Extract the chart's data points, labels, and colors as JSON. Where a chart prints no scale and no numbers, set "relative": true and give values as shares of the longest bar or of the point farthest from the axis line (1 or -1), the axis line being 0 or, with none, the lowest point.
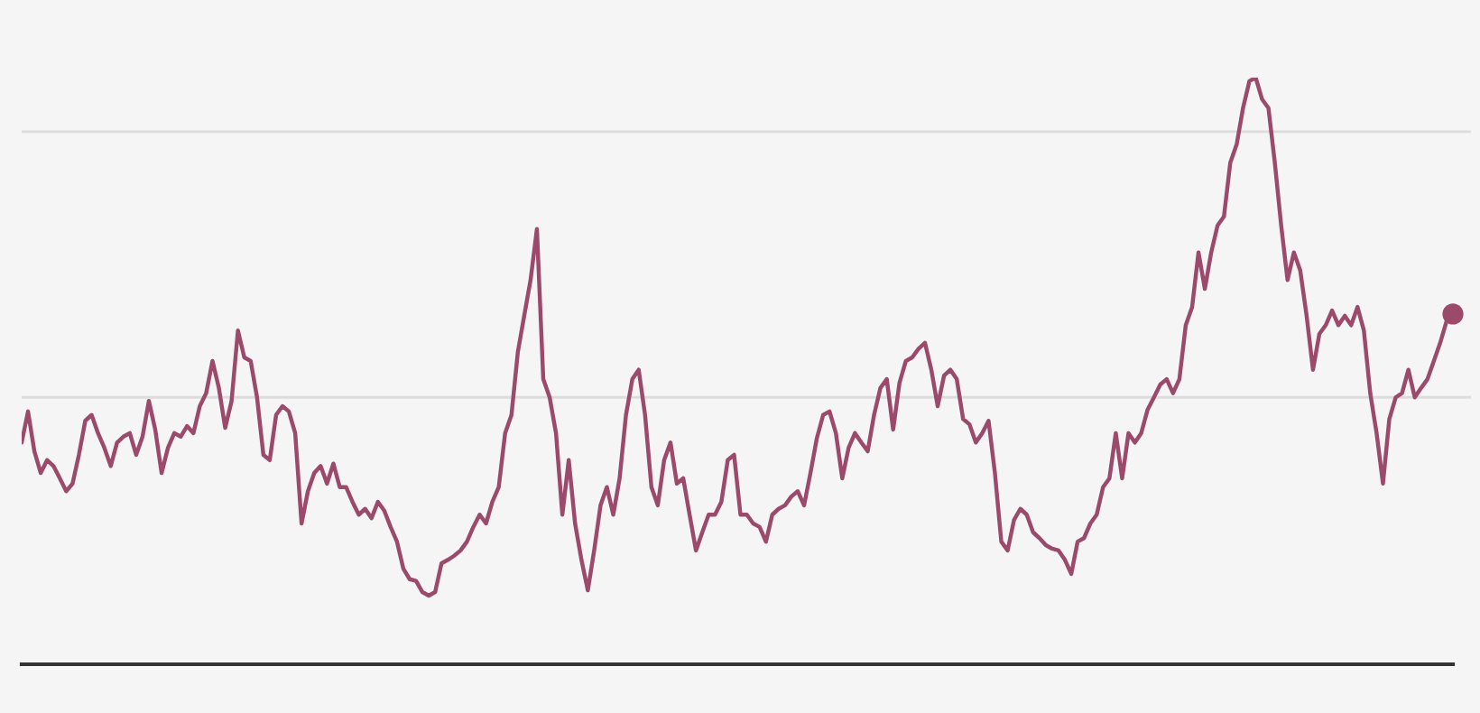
{
  "chart_data": {
    "type": "line",
    "relative": true,
    "marker": "none",
    "line_style": "solid",
    "legend": false,
    "categories": [
      null,
      null,
      null,
      null,
      null,
      null,
      null,
      null,
      null,
      null,
      null,
      null,
      null,
      null,
      null,
      null,
      null,
      null,
      null,
      null,
      null,
      null,
      null,
      null,
      null,
      null,
      null,
      null,
      null,
      null,
      null,
      null,
      null,
      null,
      null,
      null,
      null,
      null,
      null,
      null,
      null,
      null,
      null,
      null,
      null,
      null,
      null,
      null,
      null,
      null,
      null,
      null,
      null,
      null,
      null,
      null,
      null,
      null,
      null,
      null,
      null,
      null,
      null,
      null,
      null,
      null,
      null,
      null,
      null,
      null,
      null,
      null,
      null,
      null,
      null,
      null,
      null,
      null,
      null,
      null,
      null,
      null,
      null,
      null,
      null,
      null,
      null,
      null,
      null,
      null,
      null,
      null,
      null,
      null,
      null,
      null,
      null,
      null,
      null,
      null,
      null,
      null,
      null,
      null,
      null,
      null,
      null,
      null,
      null,
      null,
      null,
      null,
      null,
      null,
      null,
      null,
      null,
      null,
      null,
      null,
      null,
      null,
      null,
      null,
      null,
      null,
      null,
      null,
      null,
      null,
      null,
      null,
      null,
      null,
      null,
      null,
      null,
      null,
      null,
      null,
      null,
      null,
      null,
      null,
      null,
      null,
      null,
      null,
      null,
      null,
      null,
      null,
      null,
      null,
      null,
      null,
      null,
      null,
      null,
      null,
      null,
      null,
      null,
      null,
      null,
      null,
      null,
      null,
      null,
      null,
      null,
      null,
      null,
      null,
      null,
      null,
      null,
      null,
      null,
      null,
      null,
      null,
      null,
      null,
      null,
      null,
      null,
      null,
      null,
      null,
      null,
      null,
      null,
      null,
      null,
      null,
      null,
      null,
      null,
      null,
      null,
      null,
      null,
      null,
      null,
      null,
      null,
      null,
      null,
      null,
      null,
      null,
      null,
      null,
      null,
      null,
      null,
      null,
      null,
      null,
      null,
      null,
      null,
      null,
      null,
      null
    ],
    "ref_lines": [
      {
        "axis": "y",
        "value": 0.908,
        "color": "#dcdcdc"
      },
      {
        "axis": "y",
        "value": 0.455,
        "color": "#dcdcdc"
      }
    ],
    "series": [
      {
        "color": "#9b4a6b",
        "values": [
          0.378,
          0.431,
          0.363,
          0.326,
          0.348,
          0.338,
          0.317,
          0.295,
          0.308,
          0.357,
          0.415,
          0.425,
          0.394,
          0.369,
          0.338,
          0.378,
          0.388,
          0.394,
          0.357,
          0.388,
          0.449,
          0.4,
          0.326,
          0.369,
          0.394,
          0.388,
          0.406,
          0.394,
          0.44,
          0.462,
          0.517,
          0.471,
          0.403,
          0.449,
          0.569,
          0.523,
          0.517,
          0.455,
          0.357,
          0.348,
          0.425,
          0.44,
          0.431,
          0.394,
          0.24,
          0.295,
          0.326,
          0.338,
          0.308,
          0.342,
          0.302,
          0.302,
          0.277,
          0.255,
          0.265,
          0.249,
          0.277,
          0.262,
          0.234,
          0.209,
          0.163,
          0.145,
          0.142,
          0.123,
          0.117,
          0.123,
          0.172,
          0.178,
          0.185,
          0.194,
          0.209,
          0.234,
          0.255,
          0.24,
          0.277,
          0.302,
          0.394,
          0.425,
          0.532,
          0.594,
          0.655,
          0.742,
          0.486,
          0.455,
          0.394,
          0.255,
          0.348,
          0.24,
          0.178,
          0.126,
          0.194,
          0.271,
          0.302,
          0.255,
          0.317,
          0.425,
          0.486,
          0.502,
          0.425,
          0.302,
          0.271,
          0.348,
          0.378,
          0.308,
          0.317,
          0.255,
          0.194,
          0.225,
          0.255,
          0.255,
          0.277,
          0.348,
          0.357,
          0.255,
          0.255,
          0.24,
          0.234,
          0.209,
          0.255,
          0.265,
          0.271,
          0.286,
          0.295,
          0.271,
          0.326,
          0.385,
          0.425,
          0.431,
          0.394,
          0.317,
          0.369,
          0.394,
          0.378,
          0.363,
          0.425,
          0.471,
          0.486,
          0.4,
          0.48,
          0.517,
          0.523,
          0.538,
          0.548,
          0.502,
          0.44,
          0.492,
          0.502,
          0.486,
          0.418,
          0.409,
          0.378,
          0.394,
          0.415,
          0.326,
          0.209,
          0.194,
          0.246,
          0.265,
          0.255,
          0.225,
          0.215,
          0.203,
          0.197,
          0.194,
          0.178,
          0.154,
          0.209,
          0.215,
          0.24,
          0.255,
          0.302,
          0.317,
          0.394,
          0.317,
          0.394,
          0.378,
          0.394,
          0.434,
          0.455,
          0.477,
          0.486,
          0.462,
          0.486,
          0.578,
          0.609,
          0.702,
          0.64,
          0.702,
          0.748,
          0.763,
          0.855,
          0.886,
          0.948,
          0.994,
          1,
          0.963,
          0.948,
          0.855,
          0.748,
          0.655,
          0.702,
          0.671,
          0.594,
          0.502,
          0.563,
          0.578,
          0.603,
          0.578,
          0.594,
          0.578,
          0.609,
          0.569,
          0.462,
          0.394,
          0.308,
          0.418,
          0.455,
          0.462,
          0.502,
          0.455,
          0.471,
          0.486,
          0.517,
          0.548,
          0.585,
          0.597
        ]
      }
    ]
  }
}
